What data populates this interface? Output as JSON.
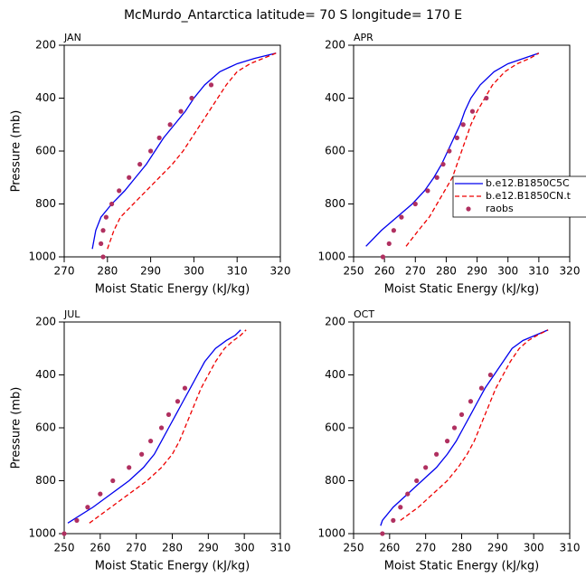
{
  "title": "McMurdo_Antarctica  latitude= 70 S longitude= 170 E",
  "chart_data": [
    {
      "type": "line",
      "title": "JAN",
      "xlabel": "Moist Static Energy (kJ/kg)",
      "ylabel": "Pressure (mb)",
      "xlim": [
        270,
        320
      ],
      "xticks": [
        270,
        280,
        290,
        300,
        310,
        320
      ],
      "ylim": [
        1000,
        200
      ],
      "yticks": [
        200,
        400,
        600,
        800,
        1000
      ],
      "series": [
        {
          "color": "#0000ee",
          "dashed": false,
          "marker": false,
          "pressure": [
            970,
            900,
            850,
            800,
            750,
            700,
            650,
            600,
            550,
            500,
            450,
            400,
            350,
            300,
            270,
            250,
            230
          ],
          "values": [
            276.5,
            277.3,
            278.5,
            281,
            284,
            286.5,
            289,
            291,
            293,
            295.5,
            298,
            300,
            302.5,
            306,
            310,
            314,
            319
          ]
        },
        {
          "color": "#ee0000",
          "dashed": true,
          "marker": false,
          "pressure": [
            970,
            900,
            850,
            800,
            750,
            700,
            650,
            600,
            550,
            500,
            450,
            400,
            350,
            300,
            270,
            250,
            230
          ],
          "values": [
            280,
            281.5,
            283,
            286,
            289,
            292,
            295,
            297.5,
            299.5,
            301.5,
            303.5,
            305.5,
            307.5,
            310,
            313,
            316,
            319
          ]
        },
        {
          "color": "#b03060",
          "dashed": false,
          "marker": true,
          "pressure": [
            1000,
            950,
            900,
            850,
            800,
            750,
            700,
            650,
            600,
            550,
            500,
            450,
            400,
            350
          ],
          "values": [
            279,
            278.5,
            279,
            279.7,
            281,
            282.7,
            285,
            287.5,
            290,
            292,
            294.5,
            297,
            299.5,
            304
          ]
        }
      ]
    },
    {
      "type": "line",
      "title": "APR",
      "xlabel": "Moist Static Energy (kJ/kg)",
      "xlim": [
        250,
        320
      ],
      "xticks": [
        250,
        260,
        270,
        280,
        290,
        300,
        310,
        320
      ],
      "ylim": [
        1000,
        200
      ],
      "yticks": [
        200,
        400,
        600,
        800,
        1000
      ],
      "legend": "right",
      "series": [
        {
          "name": "b.e12.B1850C5C",
          "color": "#0000ee",
          "dashed": false,
          "marker": false,
          "pressure": [
            960,
            900,
            850,
            800,
            750,
            700,
            650,
            600,
            550,
            500,
            450,
            400,
            350,
            300,
            270,
            250,
            230
          ],
          "values": [
            254,
            259,
            264,
            269,
            273,
            276,
            278.5,
            280.5,
            282.5,
            284.5,
            286,
            288,
            291,
            295.5,
            300,
            305,
            310
          ]
        },
        {
          "name": "b.e12.B1850CN.t",
          "color": "#ee0000",
          "dashed": true,
          "marker": false,
          "pressure": [
            960,
            900,
            850,
            800,
            750,
            700,
            650,
            600,
            550,
            500,
            450,
            400,
            350,
            300,
            270,
            250,
            230
          ],
          "values": [
            267,
            271,
            274.5,
            277,
            279.5,
            282,
            283.5,
            285,
            286.5,
            288,
            290,
            292.5,
            295,
            299,
            303,
            307,
            310
          ]
        },
        {
          "name": "raobs",
          "color": "#b03060",
          "dashed": false,
          "marker": true,
          "pressure": [
            1000,
            950,
            900,
            850,
            800,
            750,
            700,
            650,
            600,
            550,
            500,
            450,
            400
          ],
          "values": [
            259.5,
            261.5,
            263,
            265.5,
            270,
            274,
            277,
            279,
            281,
            283.5,
            285.5,
            288.5,
            293
          ]
        }
      ]
    },
    {
      "type": "line",
      "title": "JUL",
      "xlabel": "Moist Static Energy (kJ/kg)",
      "ylabel": "Pressure (mb)",
      "xlim": [
        250,
        310
      ],
      "xticks": [
        250,
        260,
        270,
        280,
        290,
        300,
        310
      ],
      "ylim": [
        1000,
        200
      ],
      "yticks": [
        200,
        400,
        600,
        800,
        1000
      ],
      "series": [
        {
          "color": "#0000ee",
          "dashed": false,
          "marker": false,
          "pressure": [
            960,
            900,
            850,
            800,
            750,
            700,
            650,
            600,
            550,
            500,
            450,
            400,
            350,
            300,
            270,
            250,
            230
          ],
          "values": [
            251,
            258,
            263,
            268,
            272,
            275,
            277,
            279,
            281,
            283,
            285,
            287,
            289,
            292,
            295,
            297.5,
            299
          ]
        },
        {
          "color": "#ee0000",
          "dashed": true,
          "marker": false,
          "pressure": [
            960,
            900,
            850,
            800,
            750,
            700,
            650,
            600,
            550,
            500,
            450,
            400,
            350,
            300,
            270,
            250,
            230
          ],
          "values": [
            257,
            263,
            268,
            273,
            277,
            280,
            282,
            283.5,
            285,
            286.5,
            288,
            290,
            292,
            294.5,
            297,
            299,
            300.5
          ]
        },
        {
          "color": "#b03060",
          "dashed": false,
          "marker": true,
          "pressure": [
            1000,
            950,
            900,
            850,
            800,
            750,
            700,
            650,
            600,
            550,
            500,
            450
          ],
          "values": [
            250,
            253.5,
            256.5,
            260,
            263.5,
            268,
            271.5,
            274,
            277,
            279,
            281.5,
            283.5
          ]
        }
      ]
    },
    {
      "type": "line",
      "title": "OCT",
      "xlabel": "Moist Static Energy (kJ/kg)",
      "xlim": [
        250,
        310
      ],
      "xticks": [
        250,
        260,
        270,
        280,
        290,
        300,
        310
      ],
      "ylim": [
        1000,
        200
      ],
      "yticks": [
        200,
        400,
        600,
        800,
        1000
      ],
      "series": [
        {
          "color": "#0000ee",
          "dashed": false,
          "marker": false,
          "pressure": [
            970,
            950,
            900,
            850,
            800,
            750,
            700,
            650,
            600,
            550,
            500,
            450,
            400,
            350,
            300,
            270,
            250,
            230
          ],
          "values": [
            257.5,
            258,
            261,
            265,
            269,
            273,
            276,
            278.5,
            280.5,
            282.5,
            284.5,
            286.5,
            289,
            291.5,
            294,
            297,
            300.5,
            304
          ]
        },
        {
          "color": "#ee0000",
          "dashed": true,
          "marker": false,
          "pressure": [
            950,
            900,
            850,
            800,
            750,
            700,
            650,
            600,
            550,
            500,
            450,
            400,
            350,
            300,
            270,
            250,
            230
          ],
          "values": [
            263,
            268,
            272,
            276,
            279,
            281.5,
            283.5,
            285,
            286.5,
            288,
            289.5,
            291.5,
            293.5,
            296,
            298.5,
            301,
            304
          ]
        },
        {
          "color": "#b03060",
          "dashed": false,
          "marker": true,
          "pressure": [
            1000,
            950,
            900,
            850,
            800,
            750,
            700,
            650,
            600,
            550,
            500,
            450,
            400
          ],
          "values": [
            258,
            261,
            263,
            265,
            267.5,
            270,
            273,
            276,
            278,
            280,
            282.5,
            285.5,
            288
          ]
        }
      ]
    }
  ]
}
